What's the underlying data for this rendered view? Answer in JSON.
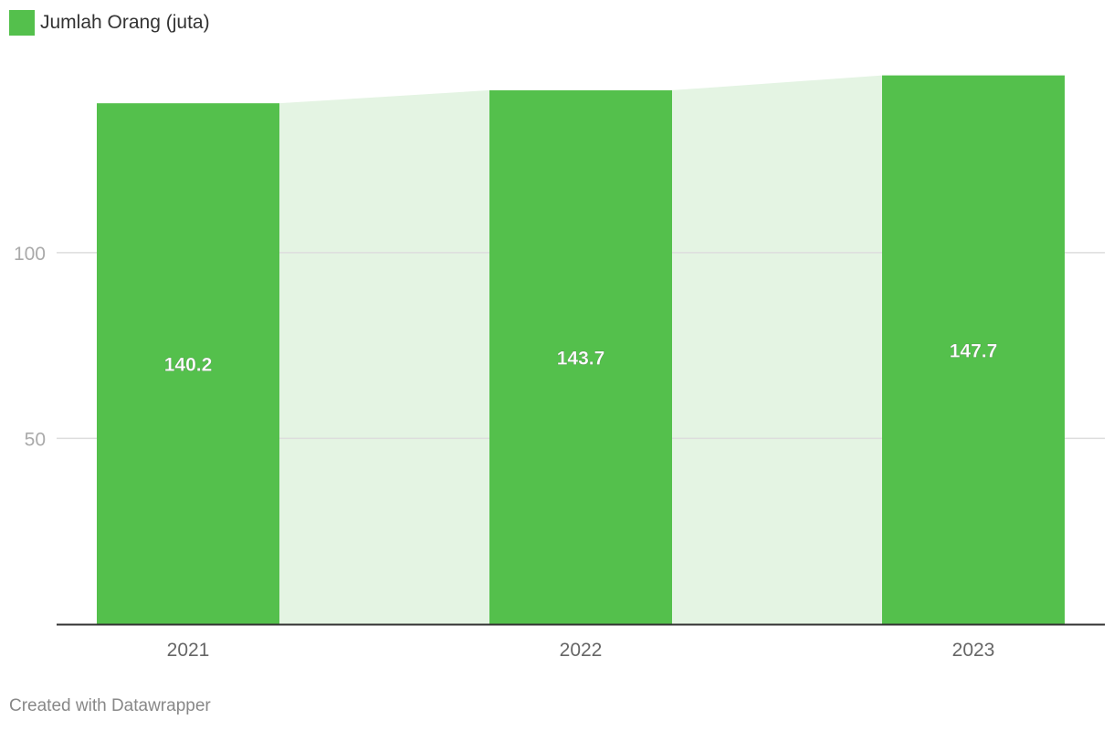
{
  "chart_data": {
    "type": "bar",
    "categories": [
      "2021",
      "2022",
      "2023"
    ],
    "series": [
      {
        "name": "Jumlah Orang (juta)",
        "values": [
          140.2,
          143.7,
          147.7
        ]
      }
    ],
    "yticks": [
      50,
      100
    ],
    "ylim": [
      0,
      148
    ],
    "grid": true,
    "legend": "top-left",
    "colors": {
      "bar": "#54c04c",
      "area": "#e4f4e3",
      "grid": "#dddddd",
      "axis": "#333333"
    }
  },
  "legend": {
    "label": "Jumlah Orang (juta)"
  },
  "footer": {
    "credit": "Created with Datawrapper"
  }
}
